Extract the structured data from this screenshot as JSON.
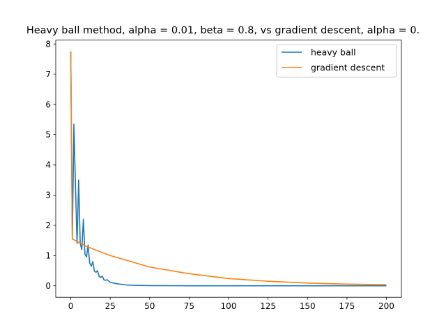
{
  "chart_data": {
    "type": "line",
    "title": "Heavy ball method, alpha = 0.01, beta = 0.8, vs gradient descent, alpha = 0.",
    "xlabel": "",
    "ylabel": "",
    "xlim": [
      -9.5,
      209.5
    ],
    "ylim": [
      -0.38,
      8.13
    ],
    "xticks": [
      0,
      25,
      50,
      75,
      100,
      125,
      150,
      175,
      200
    ],
    "yticks": [
      0,
      1,
      2,
      3,
      4,
      5,
      6,
      7,
      8
    ],
    "grid": false,
    "legend": {
      "placement": "top-right",
      "entries": [
        "heavy ball",
        "gradient descent"
      ]
    },
    "series": [
      {
        "name": "heavy ball",
        "color": "#1f77b4",
        "points": [
          [
            0,
            7.75
          ],
          [
            1,
            1.55
          ],
          [
            2,
            5.35
          ],
          [
            3,
            3.3
          ],
          [
            4,
            1.4
          ],
          [
            5,
            3.5
          ],
          [
            6,
            1.4
          ],
          [
            7,
            1.2
          ],
          [
            8,
            2.2
          ],
          [
            9,
            1.05
          ],
          [
            10,
            0.95
          ],
          [
            11,
            1.35
          ],
          [
            12,
            0.75
          ],
          [
            13,
            0.65
          ],
          [
            14,
            0.8
          ],
          [
            15,
            0.48
          ],
          [
            16,
            0.45
          ],
          [
            17,
            0.5
          ],
          [
            18,
            0.3
          ],
          [
            19,
            0.28
          ],
          [
            20,
            0.32
          ],
          [
            21,
            0.2
          ],
          [
            22,
            0.18
          ],
          [
            23,
            0.2
          ],
          [
            25,
            0.12
          ],
          [
            27,
            0.09
          ],
          [
            30,
            0.06
          ],
          [
            35,
            0.03
          ],
          [
            40,
            0.015
          ],
          [
            50,
            0.005
          ],
          [
            75,
            0.0
          ],
          [
            100,
            0.0
          ],
          [
            150,
            0.0
          ],
          [
            200,
            0.0
          ]
        ]
      },
      {
        "name": "gradient descent",
        "color": "#ff7f0e",
        "points": [
          [
            0,
            7.75
          ],
          [
            1,
            1.55
          ],
          [
            10,
            1.3
          ],
          [
            25,
            1.0
          ],
          [
            50,
            0.62
          ],
          [
            75,
            0.4
          ],
          [
            100,
            0.24
          ],
          [
            125,
            0.15
          ],
          [
            150,
            0.09
          ],
          [
            175,
            0.055
          ],
          [
            200,
            0.035
          ]
        ]
      }
    ]
  }
}
